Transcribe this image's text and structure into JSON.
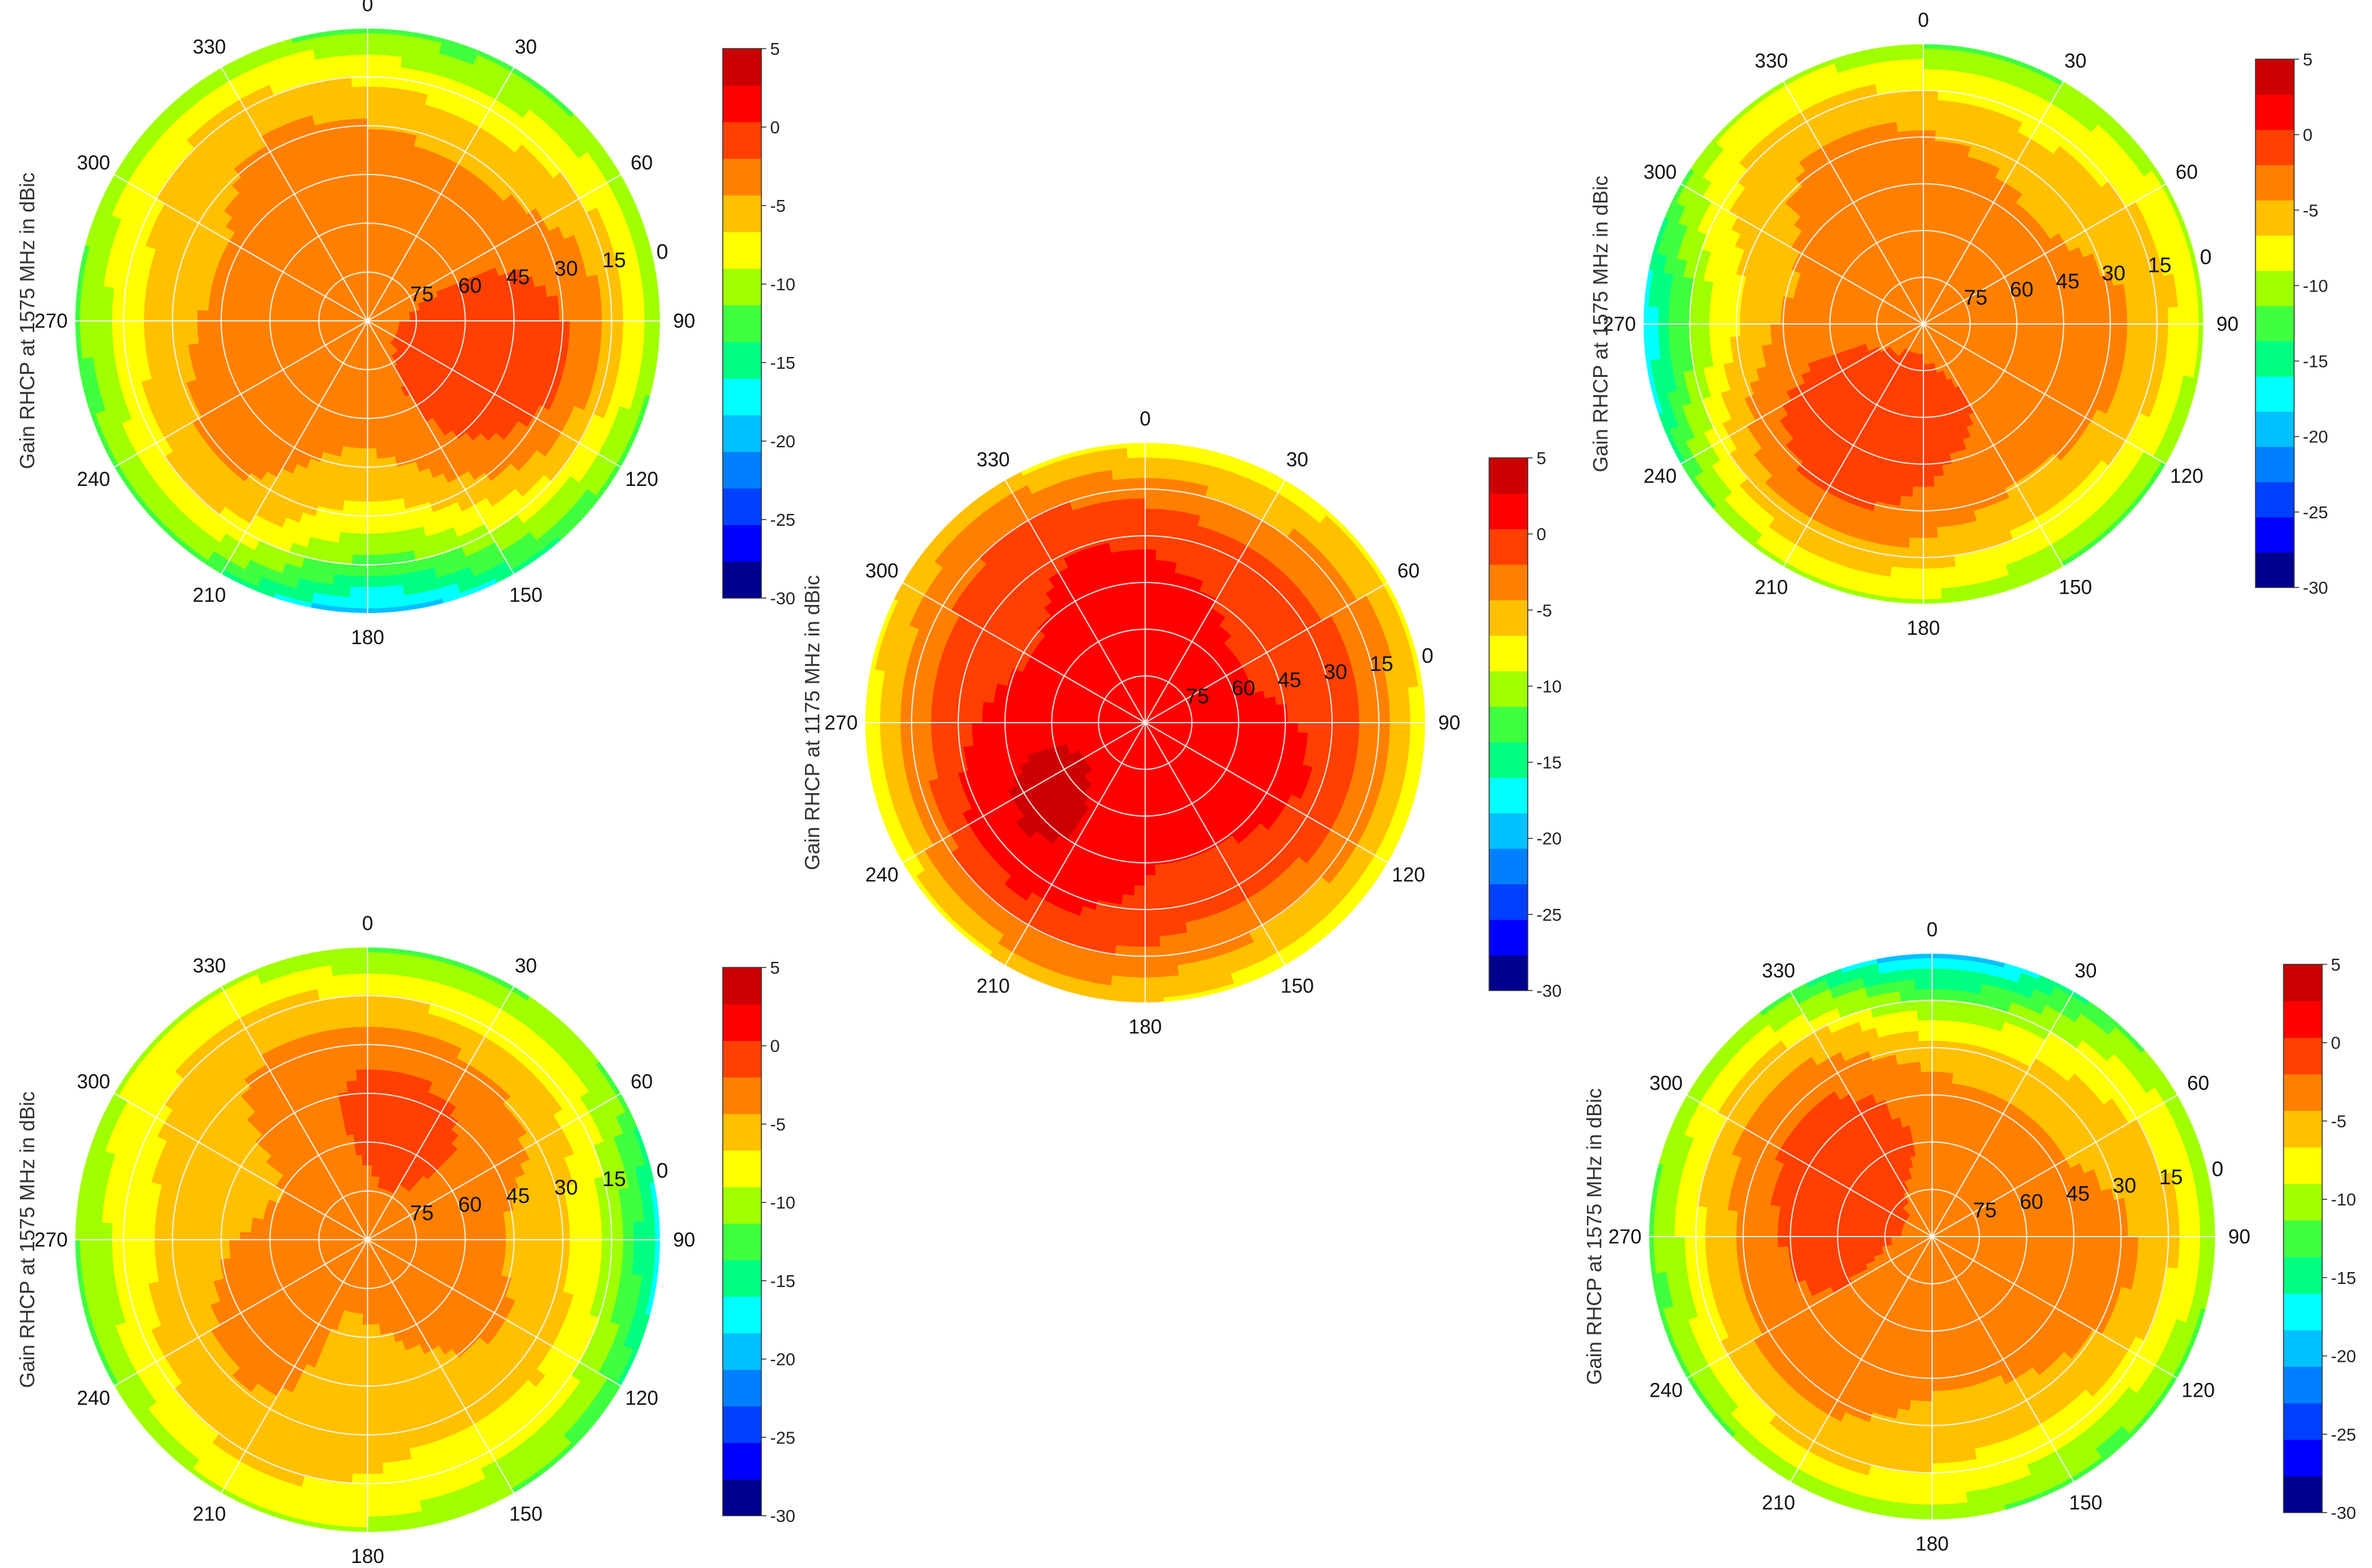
{
  "chart_data": [
    {
      "type": "polar-contour",
      "id": "top-left",
      "ylabel": "Gain RHCP at 1575 MHz in dBic",
      "theta_ticks": [
        0,
        30,
        60,
        90,
        120,
        150,
        180,
        210,
        240,
        270,
        300,
        330
      ],
      "radial_ticks": [
        75,
        60,
        45,
        30,
        15,
        0
      ],
      "colorbar_ticks": [
        5,
        0,
        -5,
        -10,
        -15,
        -20,
        -25,
        -30
      ],
      "clim": [
        -30,
        5
      ],
      "pattern": {
        "base": -3,
        "rim": -12,
        "lobe_dir": 105,
        "lobe_amp": 3,
        "null_dir": 180,
        "null_amp": 10
      }
    },
    {
      "type": "polar-contour",
      "id": "center",
      "ylabel": "Gain RHCP at 1175 MHz in dBic",
      "theta_ticks": [
        0,
        30,
        60,
        90,
        120,
        150,
        180,
        210,
        240,
        270,
        300,
        330
      ],
      "radial_ticks": [
        75,
        60,
        45,
        30,
        15,
        0
      ],
      "colorbar_ticks": [
        5,
        0,
        -5,
        -10,
        -15,
        -20,
        -25,
        -30
      ],
      "clim": [
        -30,
        5
      ],
      "pattern": {
        "base": 1,
        "rim": -8,
        "lobe_dir": 230,
        "lobe_amp": 2,
        "null_dir": 90,
        "null_amp": 2
      }
    },
    {
      "type": "polar-contour",
      "id": "top-right",
      "ylabel": "Gain RHCP at 1575 MHz in dBic",
      "theta_ticks": [
        0,
        30,
        60,
        90,
        120,
        150,
        180,
        210,
        240,
        270,
        300,
        330
      ],
      "radial_ticks": [
        75,
        60,
        45,
        30,
        15,
        0
      ],
      "colorbar_ticks": [
        5,
        0,
        -5,
        -10,
        -15,
        -20,
        -25,
        -30
      ],
      "clim": [
        -30,
        5
      ],
      "pattern": {
        "base": -3,
        "rim": -11,
        "lobe_dir": 200,
        "lobe_amp": 3,
        "null_dir": 270,
        "null_amp": 7
      }
    },
    {
      "type": "polar-contour",
      "id": "bottom-left",
      "ylabel": "Gain RHCP at 1575 MHz in dBic",
      "theta_ticks": [
        0,
        30,
        60,
        90,
        120,
        150,
        180,
        210,
        240,
        270,
        300,
        330
      ],
      "radial_ticks": [
        75,
        60,
        45,
        30,
        15,
        0
      ],
      "colorbar_ticks": [
        5,
        0,
        -5,
        -10,
        -15,
        -20,
        -25,
        -30
      ],
      "clim": [
        -30,
        5
      ],
      "pattern": {
        "base": -4,
        "rim": -11,
        "lobe_dir": 25,
        "lobe_amp": 3,
        "null_dir": 90,
        "null_amp": 8
      }
    },
    {
      "type": "polar-contour",
      "id": "bottom-right",
      "ylabel": "Gain RHCP at 1575 MHz in dBic",
      "theta_ticks": [
        0,
        30,
        60,
        90,
        120,
        150,
        180,
        210,
        240,
        270,
        300,
        330
      ],
      "radial_ticks": [
        75,
        60,
        45,
        30,
        15,
        0
      ],
      "colorbar_ticks": [
        5,
        0,
        -5,
        -10,
        -15,
        -20,
        -25,
        -30
      ],
      "clim": [
        -30,
        5
      ],
      "pattern": {
        "base": -3,
        "rim": -12,
        "lobe_dir": 300,
        "lobe_amp": 3,
        "null_dir": 0,
        "null_amp": 8
      }
    }
  ],
  "colormap": [
    "#00008f",
    "#0000ff",
    "#0040ff",
    "#0080ff",
    "#00c0ff",
    "#00ffff",
    "#00ff80",
    "#40ff40",
    "#a0ff00",
    "#ffff00",
    "#ffc000",
    "#ff8000",
    "#ff4000",
    "#ff0000",
    "#cc0000"
  ]
}
